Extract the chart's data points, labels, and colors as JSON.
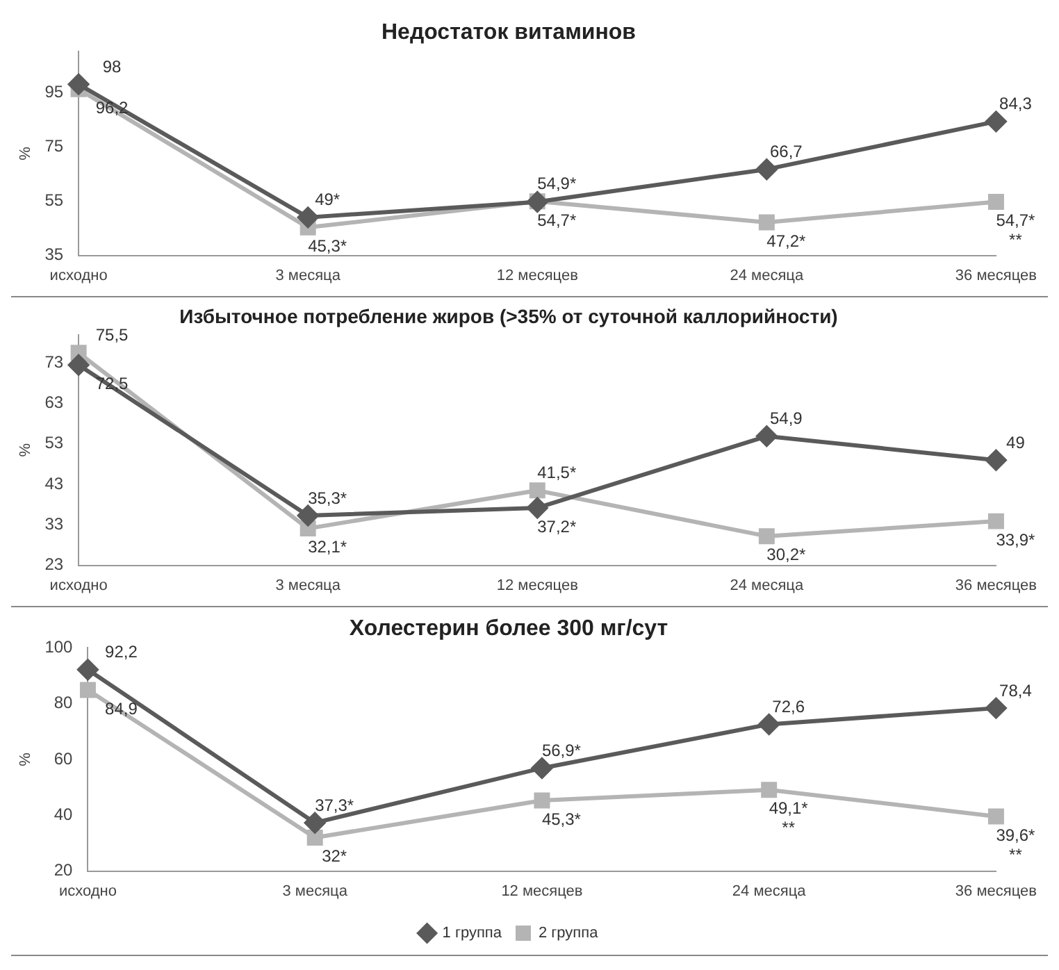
{
  "chart_data": [
    {
      "type": "line",
      "title": "Недостаток витаминов",
      "ylabel": "%",
      "categories": [
        "исходно",
        "3 месяца",
        "12 месяцев",
        "24 месяца",
        "36 месяцев"
      ],
      "ylim": [
        35,
        110
      ],
      "yticks": [
        35,
        55,
        75,
        95
      ],
      "grid": false,
      "legend": false,
      "line_style": "solid",
      "series": [
        {
          "color": "#5a5a5a",
          "marker": "diamond",
          "values": [
            98,
            49,
            54.7,
            66.7,
            84.3
          ],
          "value_labels": [
            "98",
            "49*",
            "54,7*",
            "66,7",
            "84,3"
          ]
        },
        {
          "color": "#b4b4b4",
          "marker": "square",
          "values": [
            96.2,
            45.3,
            54.9,
            47.2,
            54.7
          ],
          "value_labels": [
            "96,2",
            "45,3*",
            "54,9*",
            "47,2*",
            "54,7*"
          ]
        }
      ],
      "annotations": [
        {
          "text": "**",
          "x": "36 месяцев",
          "y": 54.7
        }
      ]
    },
    {
      "type": "line",
      "title": "Избыточное потребление жиров (>35% от суточной каллорийности)",
      "ylabel": "%",
      "categories": [
        "исходно",
        "3 месяца",
        "12 месяцев",
        "24 месяца",
        "36 месяцев"
      ],
      "ylim": [
        23,
        80
      ],
      "yticks": [
        23,
        33,
        43,
        53,
        63,
        73
      ],
      "grid": false,
      "legend": false,
      "line_style": "solid",
      "series": [
        {
          "color": "#5a5a5a",
          "marker": "diamond",
          "values": [
            72.5,
            35.3,
            37.2,
            54.9,
            49
          ],
          "value_labels": [
            "72,5",
            "35,3*",
            "37,2*",
            "54,9",
            "49"
          ]
        },
        {
          "color": "#b4b4b4",
          "marker": "square",
          "values": [
            75.5,
            32.1,
            41.5,
            30.2,
            33.9
          ],
          "value_labels": [
            "75,5",
            "32,1*",
            "41,5*",
            "30,2*",
            "33,9*"
          ]
        }
      ]
    },
    {
      "type": "line",
      "title": "Холестерин более 300 мг/сут",
      "ylabel": "%",
      "categories": [
        "исходно",
        "3 месяца",
        "12 месяцев",
        "24 месяца",
        "36 месяцев"
      ],
      "ylim": [
        20,
        100
      ],
      "yticks": [
        20,
        40,
        60,
        80,
        100
      ],
      "grid": false,
      "legend": "bottom",
      "line_style": "solid",
      "series": [
        {
          "name": "1 группа",
          "color": "#5a5a5a",
          "marker": "diamond",
          "values": [
            92.2,
            37.3,
            56.9,
            72.6,
            78.4
          ],
          "value_labels": [
            "92,2",
            "37,3*",
            "56,9*",
            "72,6",
            "78,4"
          ]
        },
        {
          "name": "2 группа",
          "color": "#b4b4b4",
          "marker": "square",
          "values": [
            84.9,
            32,
            45.3,
            49.1,
            39.6
          ],
          "value_labels": [
            "84,9",
            "32*",
            "45,3*",
            "49,1*",
            "39,6*"
          ]
        }
      ],
      "annotations": [
        {
          "text": "**",
          "x": "24 месяца",
          "y": 49.1
        },
        {
          "text": "**",
          "x": "36 месяцев",
          "y": 39.6
        }
      ]
    }
  ]
}
